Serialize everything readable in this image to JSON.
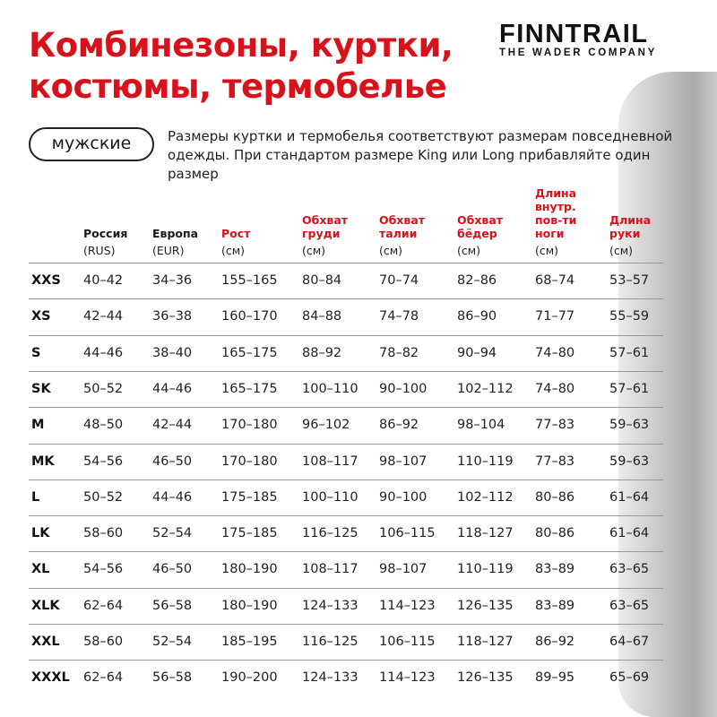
{
  "title_line1": "Комбинезоны, куртки,",
  "title_line2": "костюмы, термобелье",
  "logo": {
    "brand": "FINNTRAIL",
    "tagline": "THE WADER COMPANY"
  },
  "category_label": "мужские",
  "note": "Размеры куртки и термобелья соответствуют размерам повседневной одежды. При стандартом размере King или Long прибавляйте один размер",
  "colors": {
    "accent": "#d7121a",
    "text": "#1a1a1a"
  },
  "columns": [
    {
      "label": "",
      "unit": ""
    },
    {
      "label": "Россия",
      "unit": "(RUS)"
    },
    {
      "label": "Европа",
      "unit": "(EUR)"
    },
    {
      "label": "Рост",
      "unit": "(см)"
    },
    {
      "label": "Обхват груди",
      "unit": "(см)"
    },
    {
      "label": "Обхват талии",
      "unit": "(см)"
    },
    {
      "label": "Обхват бёдер",
      "unit": "(см)"
    },
    {
      "label": "Длина внутр. пов-ти ноги",
      "unit": "(см)"
    },
    {
      "label": "Длина руки",
      "unit": "(см)"
    }
  ],
  "rows": [
    [
      "XXS",
      "40–42",
      "34–36",
      "155–165",
      "80–84",
      "70–74",
      "82–86",
      "68–74",
      "53–57"
    ],
    [
      "XS",
      "42–44",
      "36–38",
      "160–170",
      "84–88",
      "74–78",
      "86–90",
      "71–77",
      "55–59"
    ],
    [
      "S",
      "44–46",
      "38–40",
      "165–175",
      "88–92",
      "78–82",
      "90–94",
      "74–80",
      "57–61"
    ],
    [
      "SK",
      "50–52",
      "44–46",
      "165–175",
      "100–110",
      "90–100",
      "102–112",
      "74–80",
      "57–61"
    ],
    [
      "M",
      "48–50",
      "42–44",
      "170–180",
      "96–102",
      "86–92",
      "98–104",
      "77–83",
      "59–63"
    ],
    [
      "MK",
      "54–56",
      "46–50",
      "170–180",
      "108–117",
      "98–107",
      "110–119",
      "77–83",
      "59–63"
    ],
    [
      "L",
      "50–52",
      "44–46",
      "175–185",
      "100–110",
      "90–100",
      "102–112",
      "80–86",
      "61–64"
    ],
    [
      "LK",
      "58–60",
      "52–54",
      "175–185",
      "116–125",
      "106–115",
      "118–127",
      "80–86",
      "61–64"
    ],
    [
      "XL",
      "54–56",
      "46–50",
      "180–190",
      "108–117",
      "98–107",
      "110–119",
      "83–89",
      "63–65"
    ],
    [
      "XLK",
      "62–64",
      "56–58",
      "180–190",
      "124–133",
      "114–123",
      "126–135",
      "83–89",
      "63–65"
    ],
    [
      "XXL",
      "58–60",
      "52–54",
      "185–195",
      "116–125",
      "106–115",
      "118–127",
      "86–92",
      "64–67"
    ],
    [
      "XXXL",
      "62–64",
      "56–58",
      "190–200",
      "124–133",
      "114–123",
      "126–135",
      "89–95",
      "65–69"
    ]
  ]
}
